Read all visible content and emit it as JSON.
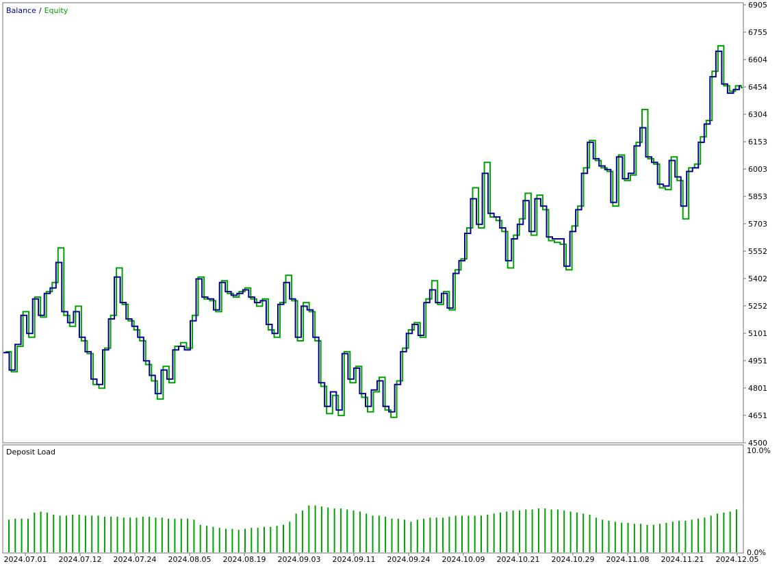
{
  "legend": {
    "balance_label": "Balance",
    "separator": "/",
    "equity_label": "Equity"
  },
  "lower_panel": {
    "title": "Deposit Load",
    "ytick_top": "10.0%",
    "ytick_bottom": "0.0%"
  },
  "colors": {
    "balance": "#00008b",
    "equity": "#00a000",
    "deposit_load": "#00a000",
    "frame": "#707070"
  },
  "chart_data": [
    {
      "type": "line",
      "yticks": [
        "6905",
        "6755",
        "6604",
        "6454",
        "6304",
        "6153",
        "6003",
        "5853",
        "5703",
        "5552",
        "5402",
        "5252",
        "5101",
        "4951",
        "4801",
        "4651",
        "4500"
      ],
      "ylim": [
        4500,
        6905
      ],
      "xticks": [
        "2024.07.01",
        "2024.07.12",
        "2024.07.24",
        "2024.08.05",
        "2024.08.19",
        "2024.09.03",
        "2024.09.11",
        "2024.09.24",
        "2024.10.09",
        "2024.10.21",
        "2024.10.29",
        "2024.11.08",
        "2024.11.21",
        "2024.12.05"
      ],
      "series": [
        {
          "name": "Balance",
          "values": [
            4995,
            4900,
            5040,
            5200,
            5100,
            5290,
            5200,
            5320,
            5350,
            5490,
            5220,
            5160,
            5220,
            5080,
            5000,
            4850,
            4820,
            5010,
            5180,
            5410,
            5270,
            5180,
            5140,
            5080,
            4950,
            4870,
            4770,
            4900,
            4850,
            5010,
            5030,
            5010,
            5170,
            5400,
            5300,
            5290,
            5230,
            5380,
            5330,
            5310,
            5320,
            5340,
            5300,
            5270,
            5280,
            5150,
            5100,
            5260,
            5380,
            5290,
            5080,
            5250,
            5230,
            5080,
            4830,
            4700,
            4780,
            4680,
            4990,
            4850,
            4910,
            4770,
            4700,
            4790,
            4840,
            4700,
            4670,
            4820,
            5000,
            5100,
            5150,
            5090,
            5270,
            5340,
            5270,
            5320,
            5240,
            5430,
            5500,
            5650,
            5840,
            5700,
            5980,
            5760,
            5740,
            5680,
            5500,
            5620,
            5700,
            5830,
            5660,
            5840,
            5800,
            5630,
            5620,
            5620,
            5470,
            5660,
            5780,
            5980,
            6150,
            6060,
            6020,
            6000,
            5820,
            6070,
            5950,
            5980,
            6130,
            6230,
            6070,
            6040,
            5920,
            5910,
            6050,
            5960,
            5800,
            5990,
            6010,
            6150,
            6250,
            6510,
            6650,
            6470,
            6420,
            6440,
            6460
          ]
        },
        {
          "name": "Equity",
          "values": [
            5000,
            4890,
            5030,
            5220,
            5080,
            5300,
            5190,
            5330,
            5380,
            5570,
            5200,
            5140,
            5250,
            5060,
            4990,
            4820,
            4800,
            5020,
            5200,
            5460,
            5260,
            5170,
            5120,
            5060,
            4930,
            4840,
            4740,
            4920,
            4830,
            5030,
            5050,
            5020,
            5200,
            5410,
            5290,
            5280,
            5220,
            5390,
            5320,
            5300,
            5330,
            5350,
            5290,
            5250,
            5290,
            5120,
            5080,
            5270,
            5420,
            5280,
            5060,
            5270,
            5220,
            5060,
            4810,
            4660,
            4760,
            4650,
            5000,
            4830,
            4920,
            4750,
            4670,
            4780,
            4860,
            4680,
            4640,
            4840,
            5020,
            5120,
            5160,
            5080,
            5290,
            5390,
            5260,
            5330,
            5230,
            5450,
            5510,
            5680,
            5900,
            5680,
            6040,
            5740,
            5720,
            5660,
            5460,
            5640,
            5730,
            5870,
            5640,
            5860,
            5780,
            5610,
            5600,
            5590,
            5450,
            5690,
            5800,
            6010,
            6160,
            6050,
            6010,
            5990,
            5800,
            6080,
            5940,
            5970,
            6150,
            6330,
            6060,
            6030,
            5900,
            5890,
            6070,
            5940,
            5730,
            6010,
            6030,
            6180,
            6270,
            6540,
            6680,
            6460,
            6430,
            6460,
            6450
          ]
        }
      ]
    },
    {
      "type": "bar",
      "ylim": [
        0,
        10
      ],
      "series": [
        {
          "name": "Deposit Load",
          "values": [
            3.2,
            3.3,
            3.3,
            3.3,
            3.9,
            4.0,
            3.9,
            3.7,
            3.6,
            3.6,
            3.7,
            3.7,
            3.6,
            3.6,
            3.6,
            3.5,
            3.5,
            3.5,
            3.4,
            3.4,
            3.4,
            3.5,
            3.5,
            3.4,
            3.4,
            3.3,
            3.3,
            3.3,
            3.3,
            3.2,
            2.7,
            2.6,
            2.5,
            2.4,
            2.3,
            2.3,
            2.2,
            2.3,
            2.4,
            2.4,
            2.5,
            2.5,
            2.6,
            2.7,
            3.0,
            3.8,
            4.1,
            4.6,
            4.6,
            4.5,
            4.4,
            4.3,
            4.3,
            4.2,
            4.1,
            4.0,
            3.8,
            3.6,
            3.6,
            3.5,
            3.3,
            3.3,
            3.2,
            3.0,
            3.2,
            3.3,
            3.4,
            3.4,
            3.4,
            3.5,
            3.6,
            3.6,
            3.6,
            3.6,
            3.6,
            3.7,
            3.8,
            3.9,
            4.0,
            4.1,
            4.1,
            4.2,
            4.2,
            4.3,
            4.3,
            4.2,
            4.2,
            4.1,
            4.0,
            3.9,
            3.8,
            3.7,
            3.4,
            3.2,
            3.1,
            3.0,
            2.9,
            2.9,
            2.8,
            2.8,
            2.7,
            2.7,
            2.8,
            2.9,
            3.0,
            3.1,
            3.1,
            3.2,
            3.3,
            3.4,
            3.6,
            3.8,
            3.9,
            4.0,
            4.2
          ]
        }
      ]
    }
  ]
}
